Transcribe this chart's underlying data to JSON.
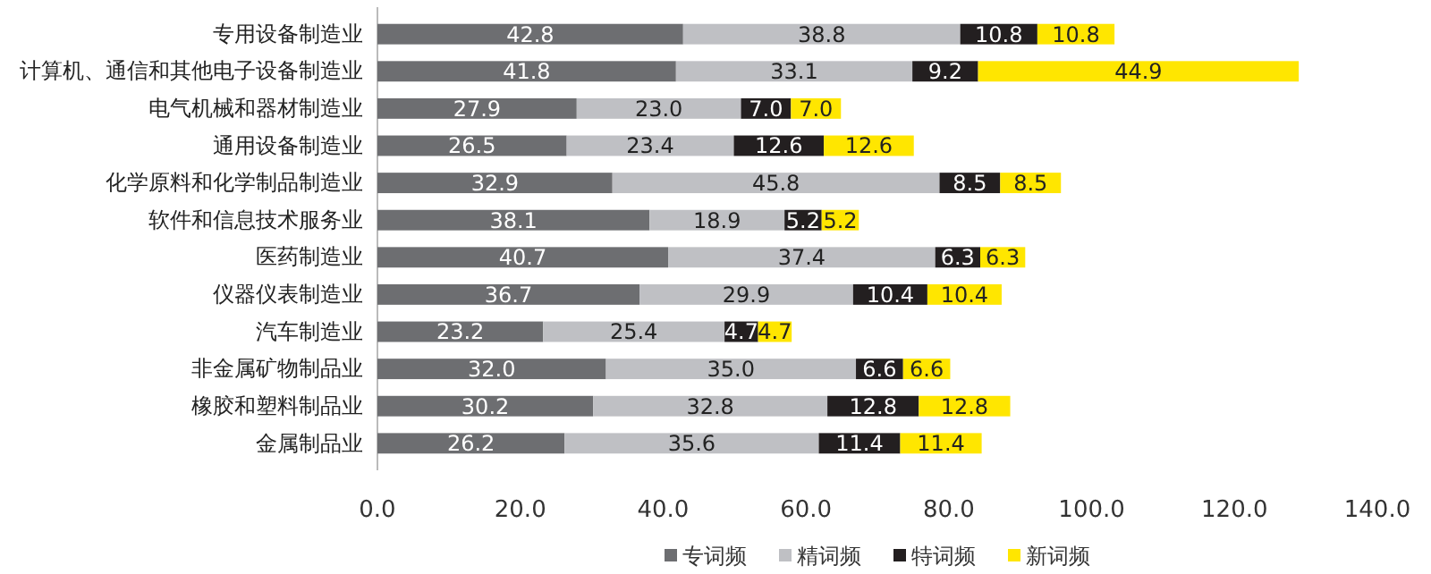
{
  "chart_data": {
    "type": "bar",
    "orientation": "horizontal",
    "stacked": true,
    "categories": [
      "专用设备制造业",
      "计算机、通信和其他电子设备制造业",
      "电气机械和器材制造业",
      "通用设备制造业",
      "化学原料和化学制品制造业",
      "软件和信息技术服务业",
      "医药制造业",
      "仪器仪表制造业",
      "汽车制造业",
      "非金属矿物制品业",
      "橡胶和塑料制品业",
      "金属制品业"
    ],
    "series": [
      {
        "name": "专词频",
        "color": "#6d6e71",
        "values": [
          42.8,
          41.8,
          27.9,
          26.5,
          32.9,
          38.1,
          40.7,
          36.7,
          23.2,
          32.0,
          30.2,
          26.2
        ],
        "value_labels": [
          "42.8",
          "41.8",
          "27.9",
          "26.5",
          "32.9",
          "38.1",
          "40.7",
          "36.7",
          "23.2",
          "32.0",
          "30.2",
          "26.2"
        ]
      },
      {
        "name": "精词频",
        "color": "#bfc0c4",
        "values": [
          38.8,
          33.1,
          23.0,
          23.4,
          45.8,
          18.9,
          37.4,
          29.9,
          25.4,
          35.0,
          32.8,
          35.6
        ],
        "value_labels": [
          "38.8",
          "33.1",
          "23.0",
          "23.4",
          "45.8",
          "18.9",
          "37.4",
          "29.9",
          "25.4",
          "35.0",
          "32.8",
          "35.6"
        ]
      },
      {
        "name": "特词频",
        "color": "#231f20",
        "values": [
          10.8,
          9.2,
          7.0,
          12.6,
          8.5,
          5.2,
          6.3,
          10.4,
          4.7,
          6.6,
          12.8,
          11.4
        ],
        "value_labels": [
          "10.8",
          "9.2",
          "7.0",
          "12.6",
          "8.5",
          "5.2",
          "6.3",
          "10.4",
          "4.7",
          "6.6",
          "12.8",
          "11.4"
        ]
      },
      {
        "name": "新词频",
        "color": "#ffe600",
        "values": [
          10.8,
          44.9,
          7.0,
          12.6,
          8.5,
          5.2,
          6.3,
          10.4,
          4.7,
          6.6,
          12.8,
          11.4
        ],
        "value_labels": [
          "10.8",
          "44.9",
          "7.0",
          "12.6",
          "8.5",
          "5.2",
          "6.3",
          "10.4",
          "4.7",
          "6.6",
          "12.8",
          "11.4"
        ]
      }
    ],
    "xlim": [
      0,
      140
    ],
    "xticks": [
      {
        "value": 0,
        "label": "0.0"
      },
      {
        "value": 20,
        "label": "20.0"
      },
      {
        "value": 40,
        "label": "40.0"
      },
      {
        "value": 60,
        "label": "60.0"
      },
      {
        "value": 80,
        "label": "80.0"
      },
      {
        "value": 100,
        "label": "100.0"
      },
      {
        "value": 120,
        "label": "120.0"
      },
      {
        "value": 140,
        "label": "140.0"
      }
    ],
    "grid": false,
    "legend": "bottom"
  }
}
